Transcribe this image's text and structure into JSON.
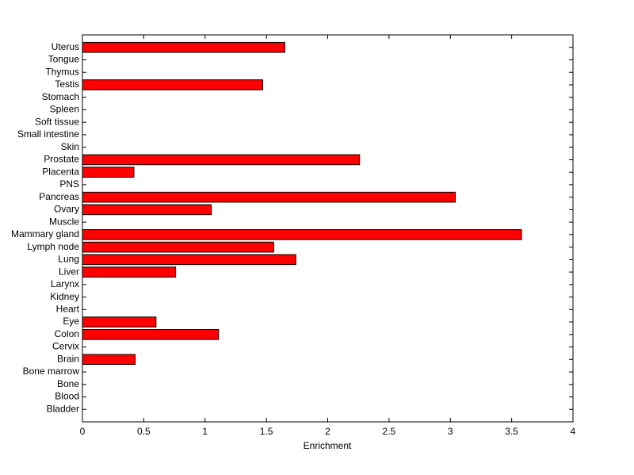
{
  "chart_data": {
    "type": "hbar",
    "categories": [
      "Uterus",
      "Tongue",
      "Thymus",
      "Testis",
      "Stomach",
      "Spleen",
      "Soft tissue",
      "Small intestine",
      "Skin",
      "Prostate",
      "Placenta",
      "PNS",
      "Pancreas",
      "Ovary",
      "Muscle",
      "Mammary gland",
      "Lymph node",
      "Lung",
      "Liver",
      "Larynx",
      "Kidney",
      "Heart",
      "Eye",
      "Colon",
      "Cervix",
      "Brain",
      "Bone marrow",
      "Bone",
      "Blood",
      "Bladder"
    ],
    "values": [
      1.65,
      0,
      0,
      1.47,
      0,
      0,
      0,
      0,
      0,
      2.26,
      0.42,
      0,
      3.04,
      1.05,
      0,
      3.58,
      1.56,
      1.74,
      0.76,
      0,
      0,
      0,
      0.6,
      1.11,
      0,
      0.43,
      0,
      0,
      0,
      0
    ],
    "color": "#ff0000",
    "xlabel": "Enrichment",
    "xlim": [
      0,
      4
    ],
    "xticks": [
      0,
      0.5,
      1,
      1.5,
      2,
      2.5,
      3,
      3.5,
      4
    ]
  }
}
